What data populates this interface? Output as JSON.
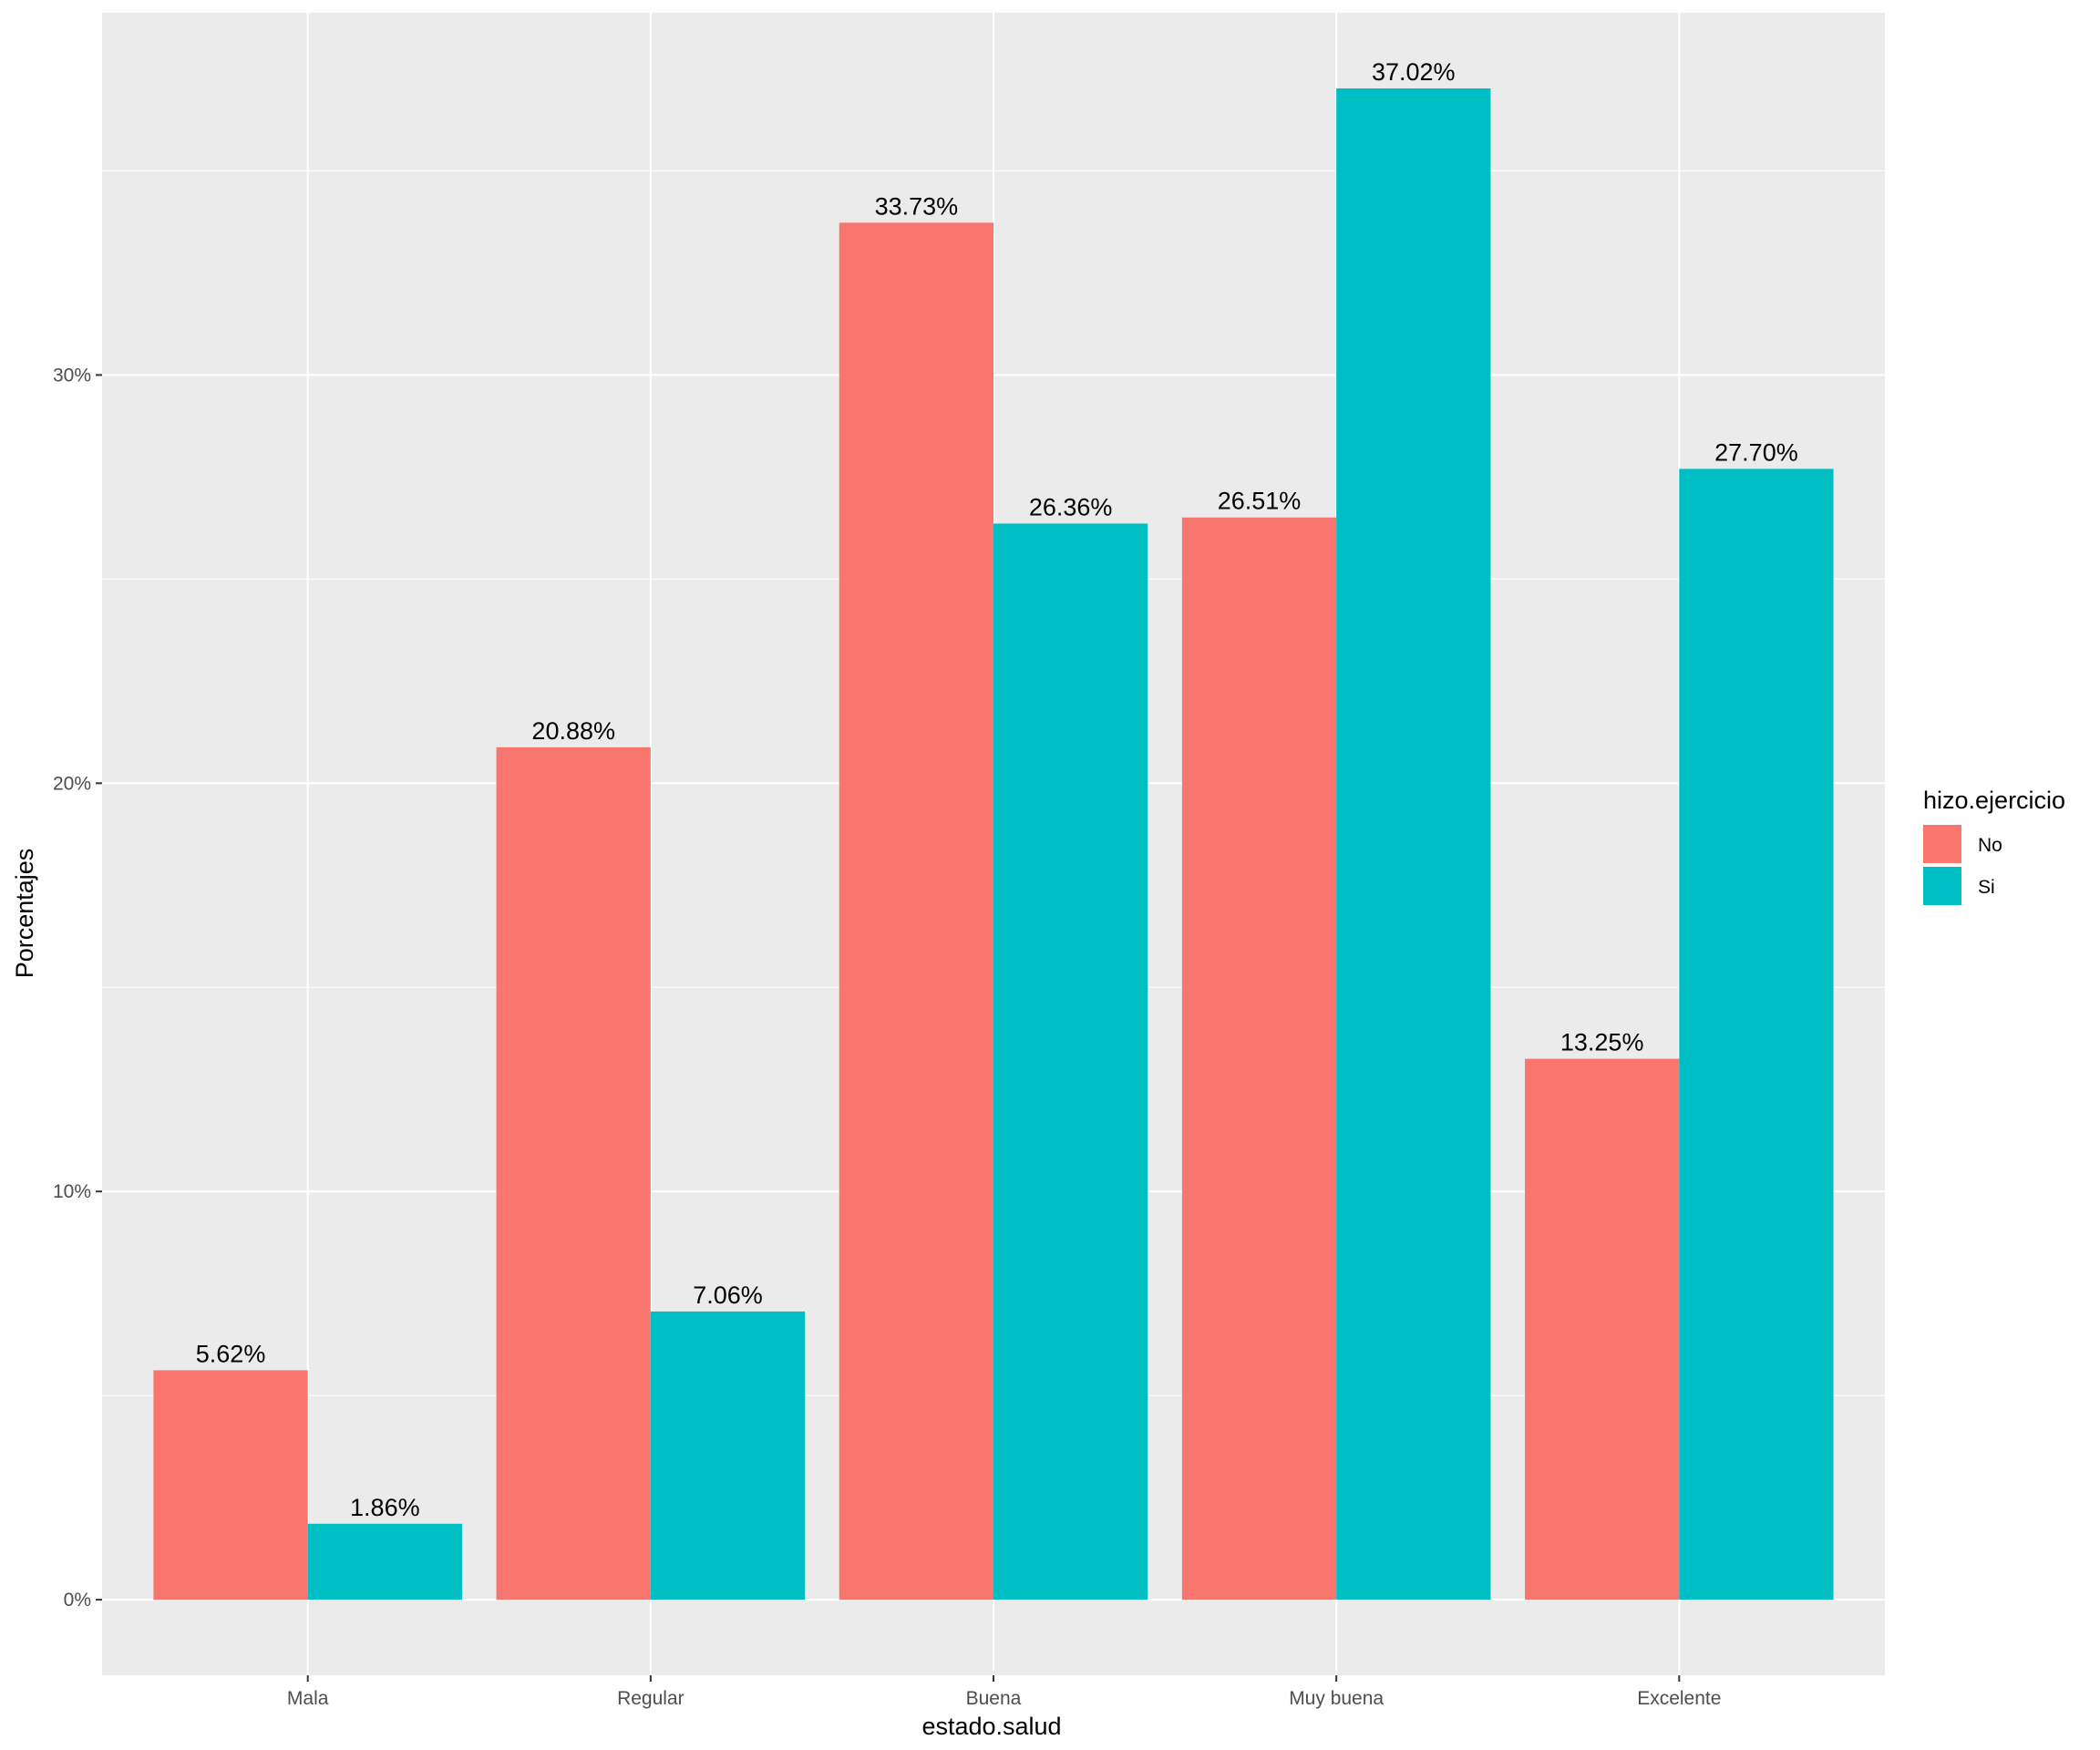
{
  "chart_data": {
    "type": "bar",
    "xlabel": "estado.salud",
    "ylabel": "Porcentajes",
    "categories": [
      "Mala",
      "Regular",
      "Buena",
      "Muy buena",
      "Excelente"
    ],
    "series": [
      {
        "name": "No",
        "values": [
          5.62,
          20.88,
          33.73,
          26.51,
          13.25
        ],
        "labels": [
          "5.62%",
          "20.88%",
          "33.73%",
          "26.51%",
          "13.25%"
        ],
        "color": "#F8766D"
      },
      {
        "name": "Si",
        "values": [
          1.86,
          7.06,
          26.36,
          37.02,
          27.7
        ],
        "labels": [
          "1.86%",
          "7.06%",
          "26.36%",
          "37.02%",
          "27.70%"
        ],
        "color": "#00BFC4"
      }
    ],
    "ylim": [
      -1.851,
      38.873
    ],
    "yticks": [
      0,
      10,
      20,
      30
    ],
    "ytick_labels": [
      "0%",
      "10%",
      "20%",
      "30%"
    ],
    "legend": {
      "title": "hizo.ejercicio",
      "placement": "right"
    },
    "grid": true,
    "panel_background": "#EBEBEB",
    "grid_color": "#FFFFFF"
  }
}
